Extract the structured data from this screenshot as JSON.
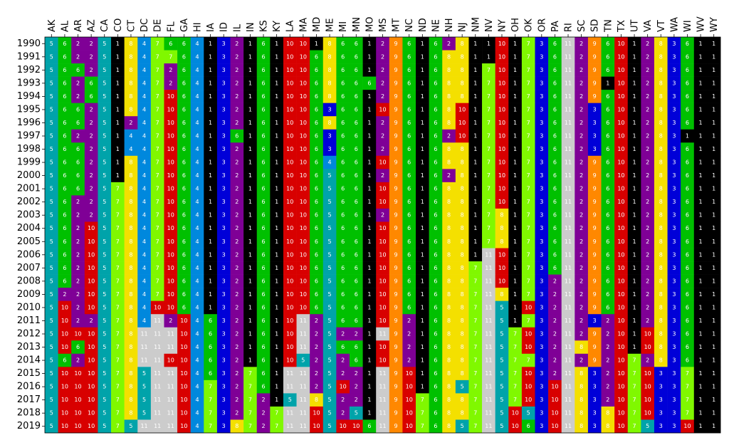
{
  "chart_data": {
    "type": "heatmap",
    "x": [
      "AK",
      "AL",
      "AR",
      "AZ",
      "CA",
      "CO",
      "CT",
      "DC",
      "DE",
      "FL",
      "GA",
      "HI",
      "IA",
      "ID",
      "IL",
      "IN",
      "KS",
      "KY",
      "LA",
      "MA",
      "MD",
      "ME",
      "MI",
      "MN",
      "MO",
      "MS",
      "MT",
      "NC",
      "ND",
      "NE",
      "NH",
      "NJ",
      "NM",
      "NV",
      "NY",
      "OH",
      "OK",
      "OR",
      "PA",
      "RI",
      "SC",
      "SD",
      "TN",
      "TX",
      "UT",
      "VA",
      "VT",
      "WA",
      "WI",
      "WV",
      "WY"
    ],
    "y": [
      1990,
      1991,
      1992,
      1993,
      1994,
      1995,
      1996,
      1997,
      1998,
      1999,
      2000,
      2001,
      2002,
      2003,
      2004,
      2005,
      2006,
      2007,
      2008,
      2009,
      2010,
      2011,
      2012,
      2013,
      2014,
      2015,
      2016,
      2017,
      2018,
      2019
    ],
    "colors": {
      "1": "#000000",
      "2": "#7f0096",
      "3": "#0000d8",
      "4": "#0088dd",
      "5": "#00a3aa",
      "6": "#00c000",
      "7": "#80f800",
      "8": "#f4e000",
      "9": "#ff8800",
      "10": "#d80000",
      "11": "#cccccc"
    },
    "values": [
      [
        5,
        6,
        2,
        2,
        5,
        1,
        8,
        4,
        7,
        6,
        6,
        4,
        1,
        3,
        2,
        1,
        6,
        1,
        10,
        10,
        1,
        8,
        6,
        6,
        1,
        2,
        9,
        6,
        1,
        6,
        2,
        8,
        1,
        1,
        10,
        1,
        7,
        3,
        6,
        11,
        2,
        9,
        6,
        10,
        1,
        2,
        8,
        3,
        6,
        1,
        1
      ],
      [
        5,
        6,
        2,
        2,
        5,
        1,
        8,
        4,
        7,
        7,
        6,
        4,
        1,
        3,
        2,
        1,
        6,
        1,
        10,
        10,
        6,
        8,
        6,
        6,
        1,
        2,
        9,
        6,
        1,
        6,
        8,
        8,
        1,
        1,
        10,
        1,
        7,
        3,
        6,
        11,
        2,
        9,
        6,
        10,
        1,
        2,
        8,
        3,
        6,
        1,
        1
      ],
      [
        5,
        6,
        6,
        2,
        5,
        1,
        8,
        4,
        7,
        2,
        6,
        4,
        1,
        3,
        2,
        1,
        6,
        1,
        10,
        10,
        6,
        8,
        6,
        6,
        1,
        2,
        9,
        6,
        1,
        6,
        8,
        8,
        1,
        7,
        10,
        1,
        7,
        3,
        6,
        11,
        2,
        9,
        6,
        10,
        1,
        2,
        8,
        3,
        6,
        1,
        1
      ],
      [
        5,
        6,
        2,
        6,
        5,
        1,
        8,
        4,
        7,
        2,
        6,
        4,
        1,
        3,
        2,
        1,
        6,
        1,
        10,
        10,
        6,
        8,
        6,
        6,
        6,
        2,
        9,
        6,
        1,
        6,
        8,
        8,
        1,
        7,
        10,
        1,
        7,
        3,
        6,
        11,
        2,
        9,
        1,
        10,
        1,
        2,
        8,
        3,
        6,
        1,
        1
      ],
      [
        5,
        6,
        2,
        6,
        5,
        1,
        8,
        4,
        7,
        10,
        6,
        4,
        1,
        3,
        2,
        1,
        6,
        1,
        10,
        10,
        6,
        8,
        6,
        6,
        1,
        2,
        9,
        6,
        1,
        6,
        8,
        8,
        1,
        7,
        10,
        1,
        7,
        3,
        6,
        11,
        2,
        9,
        6,
        10,
        1,
        2,
        8,
        3,
        6,
        1,
        1
      ],
      [
        5,
        6,
        6,
        2,
        5,
        1,
        8,
        4,
        7,
        10,
        6,
        4,
        1,
        3,
        2,
        1,
        6,
        1,
        10,
        10,
        6,
        3,
        6,
        6,
        1,
        10,
        9,
        6,
        1,
        6,
        8,
        10,
        1,
        7,
        10,
        1,
        7,
        3,
        6,
        11,
        2,
        3,
        6,
        10,
        1,
        2,
        8,
        3,
        6,
        1,
        1
      ],
      [
        5,
        6,
        6,
        2,
        5,
        1,
        2,
        4,
        7,
        10,
        6,
        4,
        1,
        3,
        2,
        1,
        6,
        1,
        10,
        10,
        6,
        8,
        6,
        6,
        1,
        2,
        9,
        6,
        1,
        6,
        8,
        10,
        1,
        7,
        10,
        1,
        7,
        3,
        6,
        11,
        2,
        3,
        6,
        10,
        1,
        2,
        8,
        3,
        6,
        1,
        1
      ],
      [
        5,
        6,
        2,
        2,
        5,
        1,
        4,
        4,
        7,
        10,
        6,
        4,
        1,
        3,
        6,
        1,
        6,
        1,
        10,
        10,
        6,
        3,
        6,
        6,
        1,
        2,
        9,
        6,
        1,
        6,
        2,
        10,
        1,
        7,
        10,
        1,
        7,
        3,
        6,
        11,
        2,
        3,
        6,
        10,
        1,
        2,
        8,
        3,
        1,
        1,
        1
      ],
      [
        5,
        6,
        6,
        2,
        5,
        1,
        4,
        4,
        7,
        10,
        6,
        4,
        1,
        3,
        2,
        1,
        6,
        1,
        10,
        10,
        6,
        3,
        6,
        6,
        1,
        2,
        9,
        6,
        1,
        6,
        8,
        8,
        1,
        7,
        10,
        1,
        7,
        3,
        6,
        11,
        2,
        3,
        6,
        10,
        1,
        2,
        8,
        3,
        6,
        1,
        1
      ],
      [
        5,
        6,
        6,
        2,
        5,
        1,
        8,
        4,
        7,
        10,
        6,
        4,
        1,
        3,
        2,
        1,
        6,
        1,
        10,
        10,
        6,
        4,
        6,
        6,
        1,
        10,
        9,
        6,
        1,
        6,
        8,
        8,
        1,
        7,
        10,
        1,
        7,
        3,
        6,
        11,
        2,
        9,
        6,
        10,
        1,
        2,
        8,
        3,
        6,
        1,
        1
      ],
      [
        5,
        6,
        6,
        2,
        5,
        1,
        8,
        4,
        7,
        10,
        6,
        4,
        1,
        3,
        2,
        1,
        6,
        1,
        10,
        10,
        6,
        5,
        6,
        6,
        1,
        2,
        9,
        6,
        1,
        6,
        2,
        8,
        1,
        7,
        10,
        1,
        7,
        3,
        6,
        11,
        2,
        9,
        6,
        10,
        1,
        2,
        8,
        3,
        6,
        1,
        1
      ],
      [
        5,
        6,
        6,
        2,
        5,
        7,
        8,
        4,
        7,
        10,
        6,
        4,
        1,
        3,
        2,
        1,
        6,
        1,
        10,
        10,
        6,
        5,
        6,
        6,
        1,
        10,
        9,
        6,
        1,
        6,
        8,
        8,
        1,
        7,
        10,
        1,
        7,
        3,
        6,
        11,
        2,
        9,
        6,
        10,
        1,
        2,
        8,
        3,
        6,
        1,
        1
      ],
      [
        5,
        6,
        2,
        2,
        5,
        7,
        8,
        4,
        7,
        10,
        6,
        4,
        1,
        3,
        2,
        1,
        6,
        1,
        10,
        10,
        6,
        5,
        6,
        6,
        1,
        10,
        9,
        6,
        1,
        6,
        8,
        8,
        1,
        7,
        10,
        1,
        7,
        3,
        6,
        11,
        2,
        9,
        6,
        10,
        1,
        2,
        8,
        3,
        6,
        1,
        1
      ],
      [
        5,
        6,
        2,
        2,
        5,
        7,
        8,
        4,
        7,
        10,
        6,
        4,
        1,
        3,
        2,
        1,
        6,
        1,
        10,
        10,
        6,
        5,
        6,
        6,
        1,
        2,
        9,
        6,
        1,
        6,
        8,
        8,
        1,
        7,
        8,
        1,
        7,
        3,
        6,
        11,
        2,
        9,
        6,
        10,
        1,
        2,
        8,
        3,
        6,
        1,
        1
      ],
      [
        5,
        6,
        2,
        10,
        5,
        7,
        8,
        4,
        7,
        10,
        6,
        4,
        1,
        3,
        2,
        1,
        6,
        1,
        10,
        10,
        6,
        5,
        6,
        6,
        1,
        10,
        9,
        6,
        1,
        6,
        8,
        8,
        1,
        7,
        8,
        1,
        7,
        3,
        6,
        11,
        2,
        9,
        6,
        10,
        1,
        2,
        8,
        3,
        6,
        1,
        1
      ],
      [
        5,
        6,
        2,
        10,
        5,
        7,
        8,
        4,
        7,
        10,
        6,
        4,
        1,
        3,
        2,
        1,
        6,
        1,
        10,
        10,
        6,
        5,
        6,
        6,
        1,
        10,
        9,
        6,
        1,
        6,
        8,
        8,
        1,
        7,
        8,
        1,
        7,
        3,
        6,
        11,
        2,
        9,
        6,
        10,
        1,
        2,
        8,
        3,
        6,
        1,
        1
      ],
      [
        5,
        6,
        2,
        10,
        5,
        7,
        8,
        4,
        7,
        10,
        6,
        4,
        1,
        3,
        2,
        1,
        6,
        1,
        10,
        10,
        6,
        5,
        6,
        6,
        1,
        10,
        9,
        6,
        1,
        6,
        8,
        8,
        1,
        11,
        10,
        1,
        7,
        3,
        6,
        11,
        2,
        9,
        6,
        10,
        1,
        2,
        8,
        3,
        6,
        1,
        1
      ],
      [
        5,
        6,
        2,
        10,
        5,
        7,
        8,
        4,
        7,
        10,
        6,
        4,
        1,
        3,
        2,
        1,
        6,
        1,
        10,
        10,
        6,
        5,
        6,
        6,
        1,
        10,
        9,
        6,
        1,
        6,
        8,
        8,
        7,
        11,
        10,
        1,
        7,
        3,
        6,
        11,
        2,
        9,
        6,
        10,
        1,
        2,
        8,
        3,
        6,
        1,
        1
      ],
      [
        5,
        6,
        2,
        10,
        5,
        7,
        8,
        4,
        7,
        10,
        6,
        4,
        1,
        3,
        2,
        1,
        6,
        1,
        10,
        10,
        6,
        5,
        6,
        6,
        1,
        10,
        9,
        6,
        1,
        6,
        8,
        8,
        7,
        11,
        10,
        1,
        7,
        3,
        2,
        11,
        2,
        9,
        6,
        10,
        1,
        2,
        8,
        3,
        6,
        1,
        1
      ],
      [
        5,
        2,
        2,
        10,
        5,
        7,
        8,
        4,
        7,
        10,
        6,
        4,
        1,
        3,
        2,
        1,
        6,
        1,
        10,
        10,
        6,
        5,
        6,
        6,
        1,
        10,
        9,
        6,
        1,
        6,
        8,
        8,
        7,
        11,
        8,
        1,
        7,
        3,
        2,
        11,
        2,
        9,
        6,
        10,
        1,
        2,
        8,
        3,
        6,
        1,
        1
      ],
      [
        5,
        10,
        2,
        10,
        5,
        7,
        8,
        4,
        10,
        10,
        6,
        4,
        1,
        3,
        2,
        1,
        6,
        1,
        10,
        10,
        6,
        5,
        6,
        6,
        1,
        10,
        9,
        6,
        1,
        6,
        8,
        8,
        7,
        11,
        5,
        1,
        10,
        3,
        2,
        11,
        2,
        9,
        6,
        10,
        1,
        2,
        8,
        3,
        6,
        1,
        1
      ],
      [
        5,
        10,
        2,
        2,
        5,
        7,
        8,
        4,
        11,
        2,
        10,
        4,
        6,
        3,
        2,
        1,
        6,
        1,
        10,
        11,
        2,
        5,
        6,
        6,
        1,
        10,
        9,
        2,
        1,
        6,
        8,
        8,
        7,
        11,
        5,
        1,
        7,
        3,
        2,
        11,
        2,
        3,
        2,
        10,
        1,
        2,
        8,
        3,
        6,
        1,
        1
      ],
      [
        5,
        10,
        10,
        10,
        5,
        7,
        8,
        11,
        11,
        11,
        10,
        4,
        6,
        3,
        2,
        1,
        6,
        1,
        10,
        11,
        2,
        5,
        2,
        2,
        1,
        11,
        9,
        2,
        1,
        6,
        8,
        8,
        7,
        11,
        5,
        7,
        10,
        3,
        2,
        11,
        2,
        9,
        2,
        10,
        1,
        10,
        8,
        3,
        6,
        1,
        1
      ],
      [
        5,
        10,
        6,
        10,
        5,
        7,
        8,
        11,
        11,
        11,
        10,
        4,
        6,
        3,
        2,
        1,
        6,
        1,
        10,
        11,
        2,
        5,
        6,
        6,
        1,
        10,
        9,
        2,
        1,
        6,
        8,
        8,
        7,
        11,
        5,
        7,
        10,
        3,
        2,
        11,
        8,
        9,
        2,
        10,
        1,
        10,
        8,
        3,
        6,
        1,
        1
      ],
      [
        5,
        6,
        2,
        10,
        5,
        7,
        8,
        11,
        11,
        10,
        10,
        4,
        6,
        3,
        2,
        1,
        6,
        1,
        10,
        5,
        2,
        5,
        2,
        6,
        1,
        10,
        9,
        2,
        1,
        6,
        8,
        8,
        7,
        11,
        5,
        7,
        7,
        3,
        2,
        11,
        2,
        9,
        2,
        10,
        7,
        2,
        8,
        3,
        6,
        1,
        1
      ],
      [
        5,
        10,
        10,
        10,
        5,
        7,
        8,
        5,
        11,
        11,
        10,
        4,
        6,
        3,
        2,
        7,
        6,
        1,
        11,
        11,
        2,
        5,
        2,
        2,
        1,
        11,
        9,
        10,
        1,
        6,
        8,
        8,
        7,
        11,
        5,
        7,
        10,
        3,
        2,
        11,
        8,
        3,
        2,
        10,
        7,
        10,
        3,
        3,
        7,
        1,
        1
      ],
      [
        5,
        10,
        10,
        10,
        5,
        7,
        8,
        5,
        11,
        11,
        10,
        4,
        7,
        3,
        2,
        7,
        6,
        1,
        11,
        11,
        2,
        5,
        10,
        2,
        1,
        11,
        9,
        10,
        1,
        6,
        8,
        5,
        7,
        11,
        5,
        7,
        10,
        3,
        10,
        11,
        8,
        3,
        2,
        10,
        7,
        10,
        3,
        3,
        7,
        1,
        1
      ],
      [
        5,
        10,
        10,
        10,
        5,
        7,
        8,
        5,
        11,
        11,
        10,
        4,
        7,
        3,
        2,
        7,
        2,
        1,
        5,
        11,
        8,
        5,
        2,
        2,
        1,
        11,
        9,
        10,
        7,
        6,
        8,
        8,
        7,
        11,
        5,
        7,
        10,
        3,
        10,
        11,
        8,
        3,
        2,
        10,
        7,
        10,
        3,
        3,
        7,
        1,
        1
      ],
      [
        5,
        10,
        10,
        10,
        5,
        7,
        8,
        5,
        11,
        11,
        10,
        4,
        7,
        3,
        2,
        7,
        2,
        7,
        11,
        11,
        10,
        5,
        2,
        5,
        1,
        11,
        9,
        10,
        7,
        6,
        8,
        8,
        7,
        11,
        5,
        10,
        5,
        3,
        10,
        11,
        8,
        3,
        8,
        10,
        7,
        10,
        3,
        3,
        7,
        1,
        1
      ],
      [
        5,
        10,
        10,
        10,
        5,
        7,
        5,
        11,
        11,
        11,
        10,
        4,
        7,
        3,
        8,
        7,
        2,
        7,
        11,
        11,
        10,
        5,
        10,
        10,
        6,
        11,
        9,
        10,
        7,
        6,
        8,
        5,
        7,
        11,
        5,
        10,
        6,
        3,
        10,
        11,
        8,
        3,
        8,
        10,
        7,
        5,
        3,
        3,
        10,
        1,
        1
      ]
    ]
  }
}
